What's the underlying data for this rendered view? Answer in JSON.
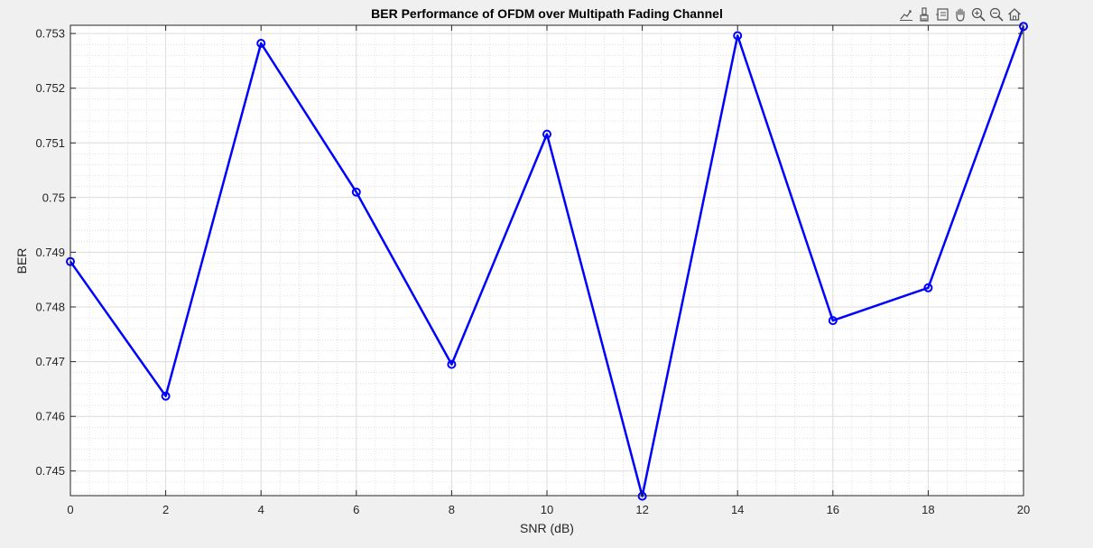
{
  "toolbar": {
    "items": [
      {
        "name": "export-icon"
      },
      {
        "name": "brush-icon"
      },
      {
        "name": "datatip-icon"
      },
      {
        "name": "pan-hand-icon"
      },
      {
        "name": "zoom-in-icon"
      },
      {
        "name": "zoom-out-icon"
      },
      {
        "name": "home-icon"
      }
    ]
  },
  "chart_data": {
    "type": "line",
    "title": "BER Performance of OFDM over Multipath Fading Channel",
    "xlabel": "SNR (dB)",
    "ylabel": "BER",
    "xlim": [
      0,
      20
    ],
    "ylim": [
      0.74455,
      0.75315
    ],
    "xticks": [
      0,
      2,
      4,
      6,
      8,
      10,
      12,
      14,
      16,
      18,
      20
    ],
    "xtick_labels": [
      "0",
      "2",
      "4",
      "6",
      "8",
      "10",
      "12",
      "14",
      "16",
      "18",
      "20"
    ],
    "yticks": [
      0.745,
      0.746,
      0.747,
      0.748,
      0.749,
      0.75,
      0.751,
      0.752,
      0.753
    ],
    "ytick_labels": [
      "0.745",
      "0.746",
      "0.747",
      "0.748",
      "0.749",
      "0.75",
      "0.751",
      "0.752",
      "0.753"
    ],
    "grid": true,
    "minor_grid": true,
    "series": [
      {
        "color": "#0000ff",
        "marker": "circle",
        "x": [
          0,
          2,
          4,
          6,
          8,
          10,
          12,
          14,
          16,
          18,
          20
        ],
        "y": [
          0.74883,
          0.74637,
          0.75282,
          0.7501,
          0.74695,
          0.75116,
          0.74454,
          0.75296,
          0.74775,
          0.74835,
          0.75313
        ]
      }
    ]
  }
}
